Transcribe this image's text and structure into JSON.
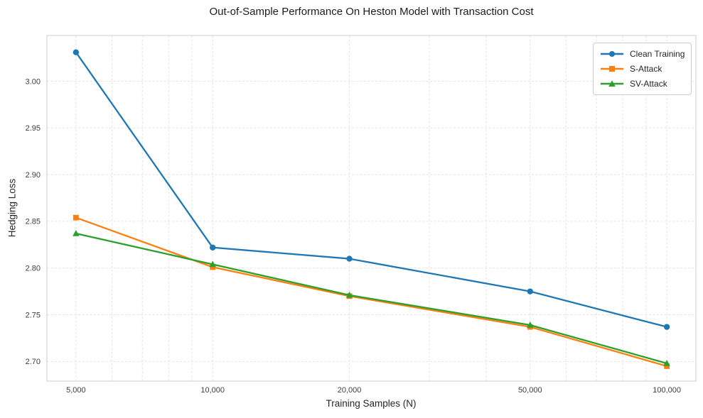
{
  "chart_data": {
    "type": "line",
    "title": "Out-of-Sample Performance On Heston Model with Transaction Cost",
    "xlabel": "Training Samples (N)",
    "ylabel": "Hedging Loss",
    "x_scale": "log",
    "x": [
      5000,
      10000,
      20000,
      50000,
      100000
    ],
    "x_tick_labels": [
      "5,000",
      "10,000",
      "20,000",
      "50,000",
      "100,000"
    ],
    "y_ticks": [
      2.7,
      2.75,
      2.8,
      2.85,
      2.9,
      2.95,
      3.0
    ],
    "y_tick_labels": [
      "2.70",
      "2.75",
      "2.80",
      "2.85",
      "2.90",
      "2.95",
      "3.00"
    ],
    "ylim": [
      2.679,
      3.049
    ],
    "xlim_log10": [
      3.635,
      5.064
    ],
    "grid": "major-and-minor-x, dashed light gray",
    "legend_position": "upper right",
    "series": [
      {
        "name": "Clean Training",
        "color": "#1f77b4",
        "marker": "circle",
        "values": [
          3.031,
          2.822,
          2.81,
          2.775,
          2.737
        ]
      },
      {
        "name": "S-Attack",
        "color": "#ff7f0e",
        "marker": "square",
        "values": [
          2.854,
          2.801,
          2.77,
          2.737,
          2.695
        ]
      },
      {
        "name": "SV-Attack",
        "color": "#2ca02c",
        "marker": "triangle",
        "values": [
          2.837,
          2.804,
          2.771,
          2.739,
          2.698
        ]
      }
    ]
  },
  "style": {
    "background": "#ffffff",
    "spine_color": "#cccccc",
    "grid_color": "#e4e4e4",
    "title_color": "#1c1c1c",
    "label_color": "#262626",
    "tick_color": "#3d3d3d"
  }
}
